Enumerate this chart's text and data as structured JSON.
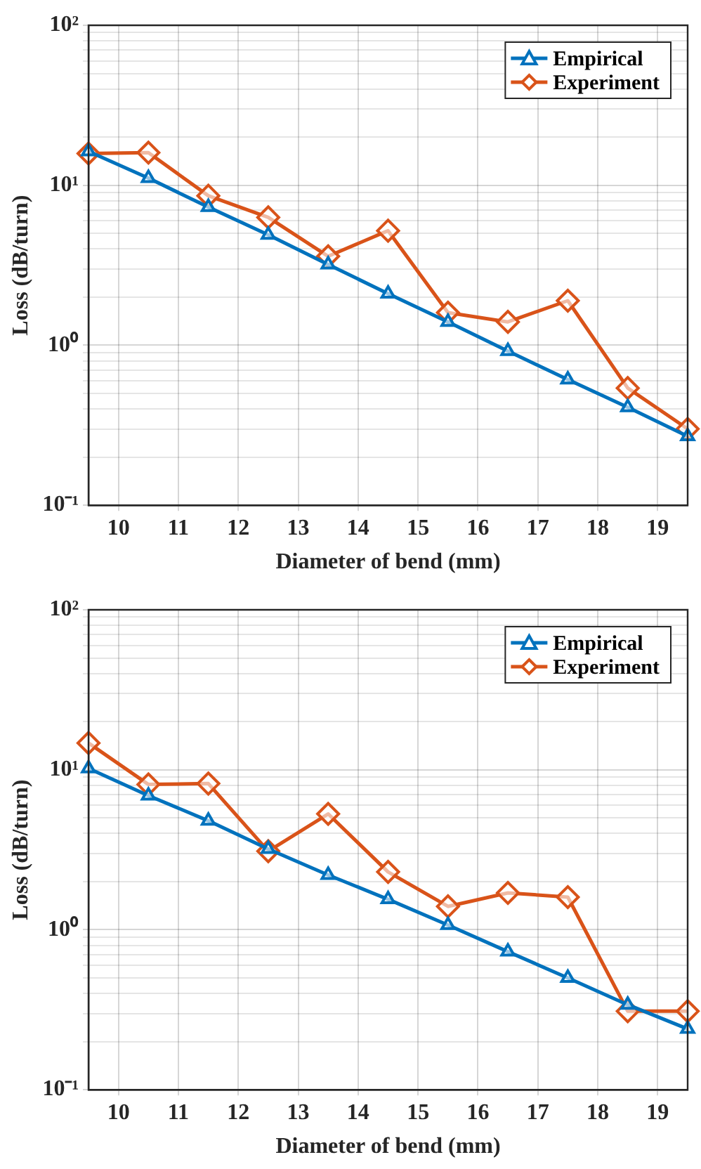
{
  "chart_data": [
    {
      "type": "line",
      "xlabel": "Diameter of bend (mm)",
      "ylabel": "Loss (dB/turn)",
      "x": [
        9.5,
        10.5,
        11.5,
        12.5,
        13.5,
        14.5,
        15.5,
        16.5,
        17.5,
        18.5,
        19.5
      ],
      "series": [
        {
          "name": "Empirical",
          "color": "#0072bd",
          "marker": "triangle",
          "values": [
            16.3,
            11.1,
            7.3,
            4.9,
            3.2,
            2.1,
            1.4,
            0.92,
            0.61,
            0.41,
            0.27
          ]
        },
        {
          "name": "Experiment",
          "color": "#d95319",
          "marker": "diamond",
          "values": [
            15.8,
            16.0,
            8.6,
            6.3,
            3.6,
            5.2,
            1.6,
            1.4,
            1.9,
            0.54,
            0.3
          ]
        }
      ],
      "xlim": [
        9.5,
        19.5
      ],
      "xticks": [
        10,
        11,
        12,
        13,
        14,
        15,
        16,
        17,
        18,
        19
      ],
      "ylim": [
        0.1,
        100
      ],
      "yticks": [
        {
          "value": 0.1,
          "label": "10⁻¹"
        },
        {
          "value": 0.2,
          "label": null
        },
        {
          "value": 0.3,
          "label": null
        },
        {
          "value": 0.4,
          "label": null
        },
        {
          "value": 0.5,
          "label": null
        },
        {
          "value": 0.6,
          "label": null
        },
        {
          "value": 0.7,
          "label": null
        },
        {
          "value": 0.8,
          "label": null
        },
        {
          "value": 0.9,
          "label": null
        },
        {
          "value": 1,
          "label": "10⁰"
        },
        {
          "value": 2,
          "label": null
        },
        {
          "value": 3,
          "label": null
        },
        {
          "value": 4,
          "label": null
        },
        {
          "value": 5,
          "label": null
        },
        {
          "value": 6,
          "label": null
        },
        {
          "value": 7,
          "label": null
        },
        {
          "value": 8,
          "label": null
        },
        {
          "value": 9,
          "label": null
        },
        {
          "value": 10,
          "label": "10¹"
        },
        {
          "value": 20,
          "label": null
        },
        {
          "value": 30,
          "label": null
        },
        {
          "value": 40,
          "label": null
        },
        {
          "value": 50,
          "label": null
        },
        {
          "value": 60,
          "label": null
        },
        {
          "value": 70,
          "label": null
        },
        {
          "value": 80,
          "label": null
        },
        {
          "value": 90,
          "label": null
        },
        {
          "value": 100,
          "label": "10²"
        }
      ],
      "log": "y",
      "grid": true,
      "legend": "top right",
      "line_style": "solid"
    },
    {
      "type": "line",
      "xlabel": "Diameter of bend (mm)",
      "ylabel": "Loss (dB/turn)",
      "x": [
        9.5,
        10.5,
        11.5,
        12.5,
        13.5,
        14.5,
        15.5,
        16.5,
        17.5,
        18.5,
        19.5
      ],
      "series": [
        {
          "name": "Empirical",
          "color": "#0072bd",
          "marker": "triangle",
          "values": [
            10.2,
            6.9,
            4.8,
            3.2,
            2.2,
            1.55,
            1.07,
            0.73,
            0.5,
            0.34,
            0.24
          ]
        },
        {
          "name": "Experiment",
          "color": "#d95319",
          "marker": "diamond",
          "values": [
            14.7,
            8.1,
            8.2,
            3.1,
            5.3,
            2.3,
            1.4,
            1.7,
            1.6,
            0.31,
            0.31
          ]
        }
      ],
      "xlim": [
        9.5,
        19.5
      ],
      "xticks": [
        10,
        11,
        12,
        13,
        14,
        15,
        16,
        17,
        18,
        19
      ],
      "ylim": [
        0.1,
        100
      ],
      "yticks": [
        {
          "value": 0.1,
          "label": "10⁻¹"
        },
        {
          "value": 0.2,
          "label": null
        },
        {
          "value": 0.3,
          "label": null
        },
        {
          "value": 0.4,
          "label": null
        },
        {
          "value": 0.5,
          "label": null
        },
        {
          "value": 0.6,
          "label": null
        },
        {
          "value": 0.7,
          "label": null
        },
        {
          "value": 0.8,
          "label": null
        },
        {
          "value": 0.9,
          "label": null
        },
        {
          "value": 1,
          "label": "10⁰"
        },
        {
          "value": 2,
          "label": null
        },
        {
          "value": 3,
          "label": null
        },
        {
          "value": 4,
          "label": null
        },
        {
          "value": 5,
          "label": null
        },
        {
          "value": 6,
          "label": null
        },
        {
          "value": 7,
          "label": null
        },
        {
          "value": 8,
          "label": null
        },
        {
          "value": 9,
          "label": null
        },
        {
          "value": 10,
          "label": "10¹"
        },
        {
          "value": 20,
          "label": null
        },
        {
          "value": 30,
          "label": null
        },
        {
          "value": 40,
          "label": null
        },
        {
          "value": 50,
          "label": null
        },
        {
          "value": 60,
          "label": null
        },
        {
          "value": 70,
          "label": null
        },
        {
          "value": 80,
          "label": null
        },
        {
          "value": 90,
          "label": null
        },
        {
          "value": 100,
          "label": "10²"
        }
      ],
      "log": "y",
      "grid": true,
      "legend": "top right",
      "line_style": "solid"
    }
  ]
}
